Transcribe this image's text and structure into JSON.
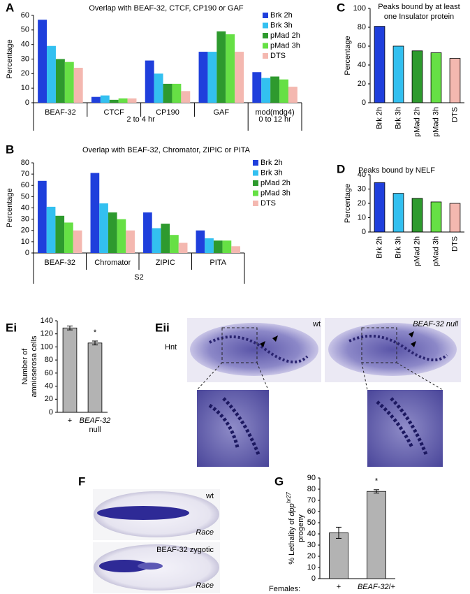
{
  "chart_data": [
    {
      "type": "bar",
      "title": "Overlap with BEAF-32, CTCF, CP190 or GAF",
      "ylabel": "Percentage",
      "categories": [
        "BEAF-32",
        "CTCF",
        "CP190",
        "GAF",
        "mod(mdg4)"
      ],
      "groups": [
        "2 to 4 hr",
        "0 to 12 hr"
      ],
      "series": [
        {
          "name": "Brk 2h",
          "color": "#1f3fdc",
          "values": [
            57,
            4,
            29,
            35,
            21
          ]
        },
        {
          "name": "Brk 3h",
          "color": "#33c0f0",
          "values": [
            39,
            5,
            20,
            35,
            17
          ]
        },
        {
          "name": "pMad 2h",
          "color": "#2e9a2e",
          "values": [
            30,
            2,
            13,
            49,
            18
          ]
        },
        {
          "name": "pMad 3h",
          "color": "#66e045",
          "values": [
            28,
            3,
            13,
            47,
            16
          ]
        },
        {
          "name": "DTS",
          "color": "#f4b8b0",
          "values": [
            24,
            3,
            8,
            35,
            11
          ]
        }
      ],
      "ylim": [
        0,
        60
      ],
      "yticks": [
        0,
        10,
        20,
        30,
        40,
        50,
        60
      ],
      "legend": "upper right"
    },
    {
      "type": "bar",
      "title": "Overlap with BEAF-32, Chromator, ZIPIC or PITA",
      "ylabel": "Percentage",
      "categories": [
        "BEAF-32",
        "Chromator",
        "ZIPIC",
        "PITA"
      ],
      "groups": [
        "S2"
      ],
      "series": [
        {
          "name": "Brk 2h",
          "color": "#1f3fdc",
          "values": [
            64,
            71,
            36,
            20
          ]
        },
        {
          "name": "Brk 3h",
          "color": "#33c0f0",
          "values": [
            41,
            44,
            22,
            13
          ]
        },
        {
          "name": "pMad 2h",
          "color": "#2e9a2e",
          "values": [
            33,
            36,
            26,
            11
          ]
        },
        {
          "name": "pMad 3h",
          "color": "#66e045",
          "values": [
            27,
            30,
            16,
            11
          ]
        },
        {
          "name": "DTS",
          "color": "#f4b8b0",
          "values": [
            20,
            20,
            9,
            6
          ]
        }
      ],
      "ylim": [
        0,
        80
      ],
      "yticks": [
        0,
        10,
        20,
        30,
        40,
        50,
        60,
        70,
        80
      ],
      "legend": "upper right"
    },
    {
      "type": "bar",
      "title": "Peaks bound by at least one Insulator protein",
      "ylabel": "Percentage",
      "categories": [
        "Brk 2h",
        "Brk 3h",
        "pMad 2h",
        "pMad 3h",
        "DTS"
      ],
      "values": [
        81,
        60,
        55,
        53,
        47
      ],
      "colors": [
        "#1f3fdc",
        "#33c0f0",
        "#2e9a2e",
        "#66e045",
        "#f4b8b0"
      ],
      "ylim": [
        0,
        100
      ],
      "yticks": [
        0,
        20,
        40,
        60,
        80,
        100
      ]
    },
    {
      "type": "bar",
      "title": "Peaks bound by NELF",
      "ylabel": "Percentage",
      "categories": [
        "Brk 2h",
        "Brk 3h",
        "pMad 2h",
        "pMad 3h",
        "DTS"
      ],
      "values": [
        34.5,
        27,
        23.5,
        21,
        20
      ],
      "colors": [
        "#1f3fdc",
        "#33c0f0",
        "#2e9a2e",
        "#66e045",
        "#f4b8b0"
      ],
      "ylim": [
        0,
        40
      ],
      "yticks": [
        0,
        10,
        20,
        30,
        40
      ]
    },
    {
      "type": "bar",
      "ylabel": [
        "Number of",
        "amnioserosa cells"
      ],
      "categories": [
        "+",
        "BEAF-32 null"
      ],
      "values": [
        129,
        106
      ],
      "errors": [
        3,
        3
      ],
      "color": "#b3b3b3",
      "annotation": "*",
      "ylim": [
        0,
        140
      ],
      "yticks": [
        0,
        20,
        40,
        60,
        80,
        100,
        120,
        140
      ]
    },
    {
      "type": "bar",
      "ylabel": [
        "% Lethality of ",
        "dpp",
        "hr27",
        "progeny"
      ],
      "xlabel": "Females:",
      "categories": [
        "+",
        "BEAF-32/+"
      ],
      "values": [
        41,
        78
      ],
      "errors": [
        5,
        1.5
      ],
      "color": "#b3b3b3",
      "annotation": "*",
      "ylim": [
        0,
        90
      ],
      "yticks": [
        0,
        10,
        20,
        30,
        40,
        50,
        60,
        70,
        80,
        90
      ]
    }
  ],
  "panel_labels": [
    "A",
    "B",
    "C",
    "D",
    "Ei",
    "Eii",
    "F",
    "G"
  ],
  "Eii": {
    "stain": "Hnt",
    "left": "wt",
    "right": "BEAF-32 null"
  },
  "F": {
    "top": "wt",
    "top_stain": "Race",
    "bottom": "BEAF-32 zygotic",
    "bottom_stain": "Race"
  }
}
